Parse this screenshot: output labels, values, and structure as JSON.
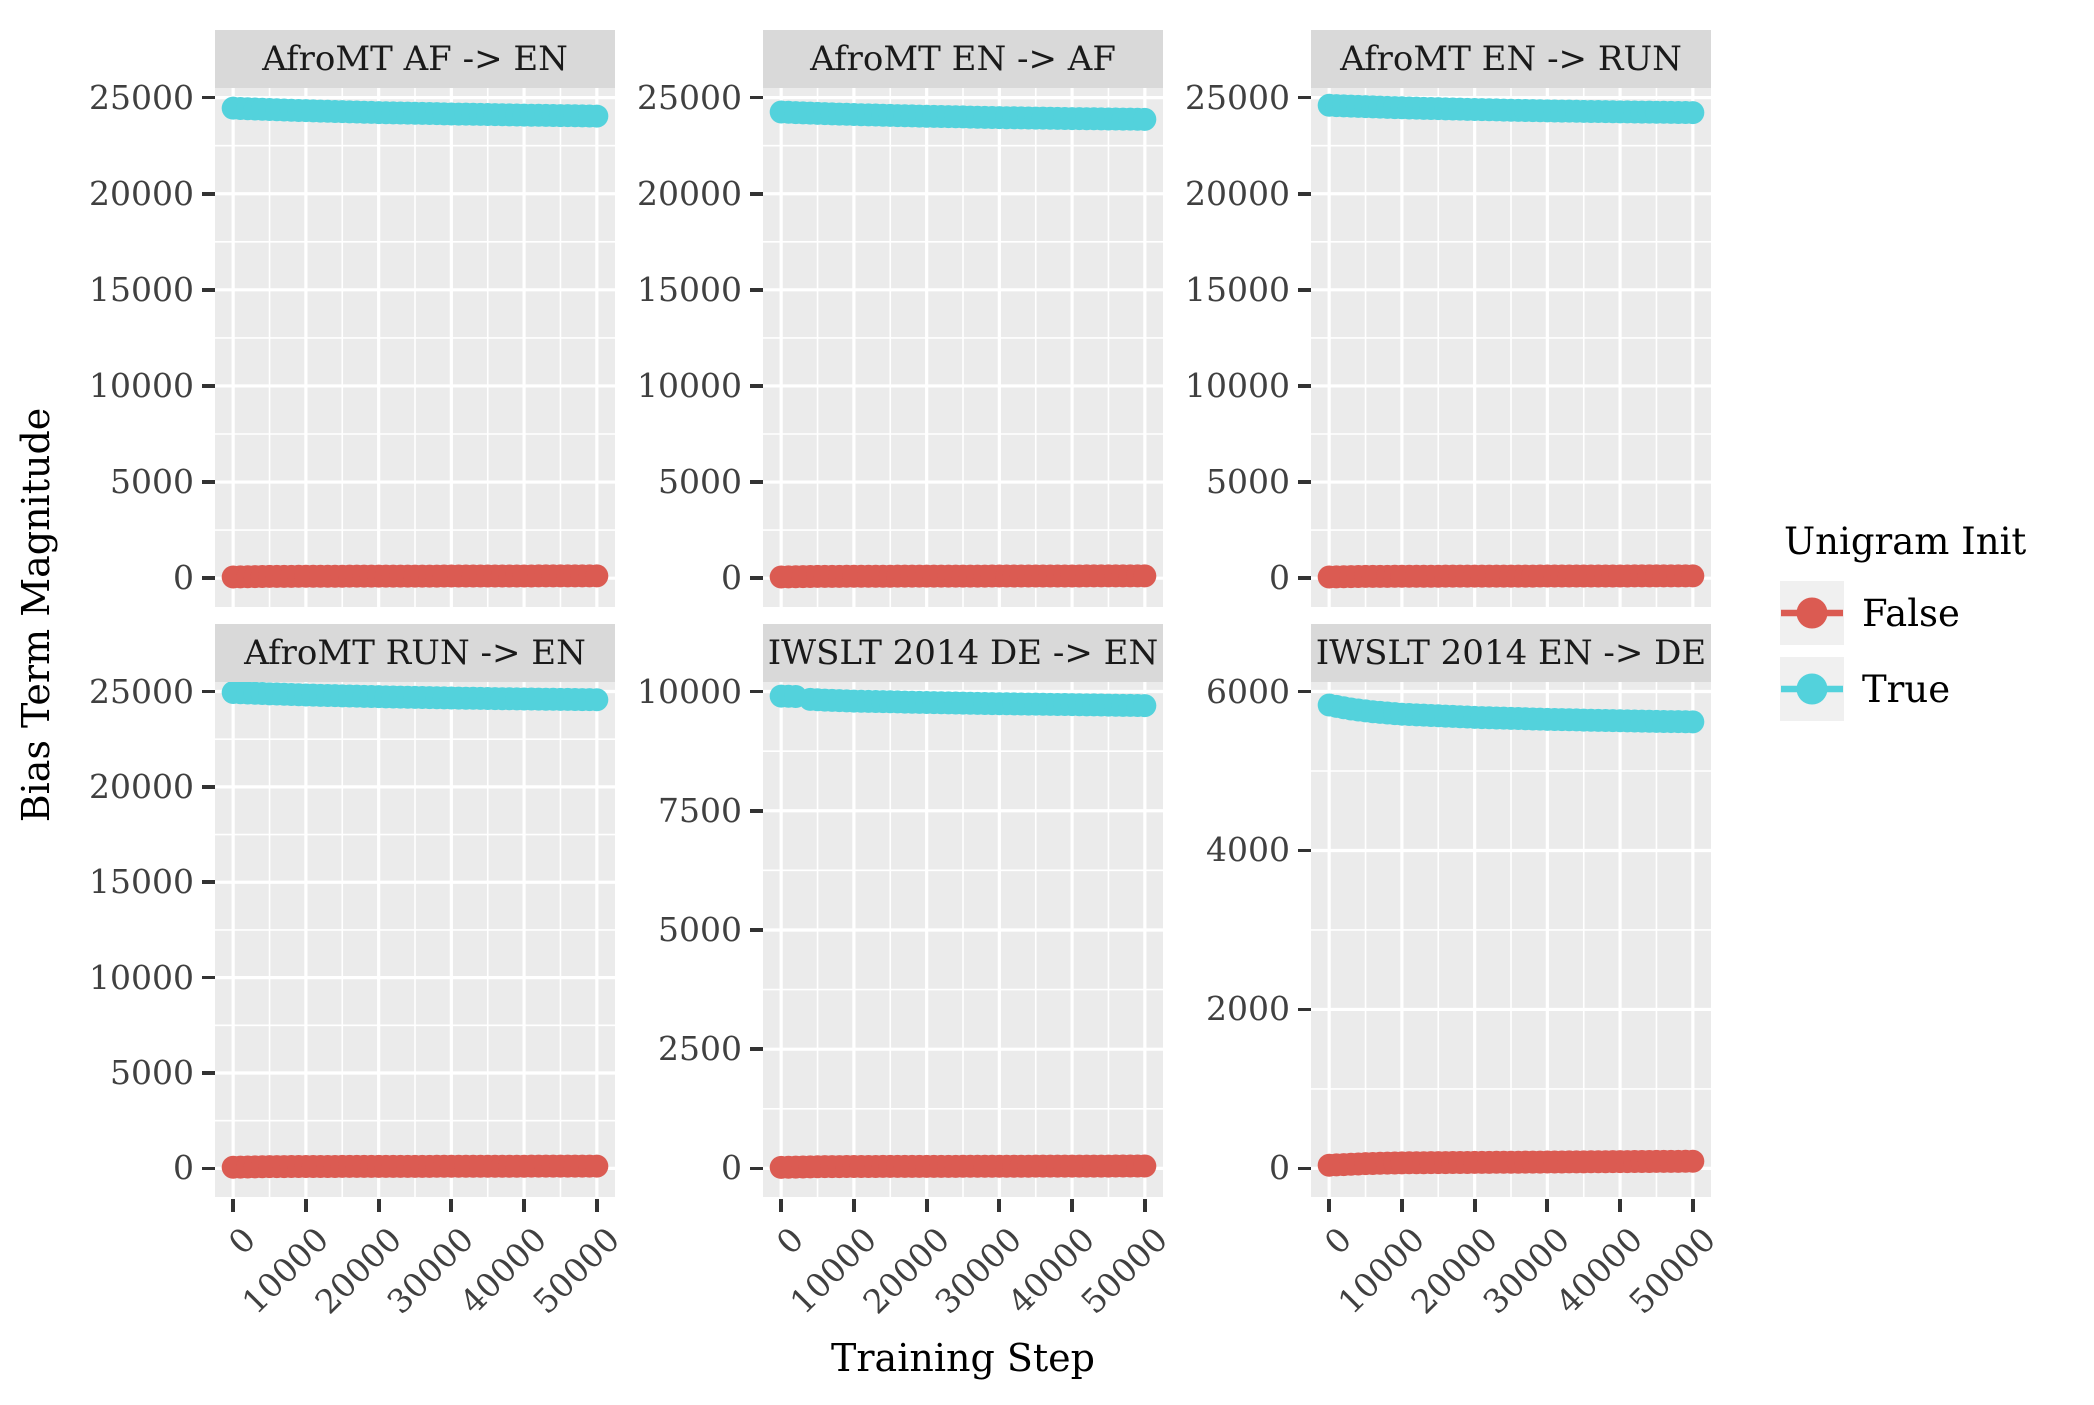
{
  "figure": {
    "ylabel": "Bias Term Magnitude",
    "xlabel": "Training Step",
    "background": "#FFFFFF",
    "panel_bg": "#EBEBEB",
    "strip_bg": "#D9D9D9",
    "grid_color": "#FFFFFF",
    "tick_mark_color": "#333333",
    "tick_text_color": "#404040",
    "strip_text_color": "#1A1A1A"
  },
  "legend": {
    "title": "Unigram Init",
    "key_bg": "#F0F0F0",
    "entries": [
      {
        "label": "False",
        "color": "#DB5B52"
      },
      {
        "label": "True",
        "color": "#53D2DC"
      }
    ]
  },
  "chart_data": [
    {
      "type": "scatter",
      "title": "AfroMT AF -> EN",
      "xlabel": "Training Step",
      "ylabel": "Bias Term Magnitude",
      "x_ticks": [
        0,
        10000,
        20000,
        30000,
        40000,
        50000
      ],
      "y_ticks": [
        0,
        5000,
        10000,
        15000,
        20000,
        25000
      ],
      "xlim": [
        -2500,
        52500
      ],
      "ylim": [
        -1500,
        25500
      ],
      "grid": true,
      "series": [
        {
          "name": "False",
          "points": [
            [
              0,
              60
            ],
            [
              5000,
              90
            ],
            [
              10000,
              100
            ],
            [
              30000,
              110
            ],
            [
              50000,
              120
            ]
          ]
        },
        {
          "name": "True",
          "points": [
            [
              0,
              24450
            ],
            [
              5000,
              24380
            ],
            [
              10000,
              24320
            ],
            [
              20000,
              24220
            ],
            [
              30000,
              24150
            ],
            [
              40000,
              24090
            ],
            [
              50000,
              24040
            ]
          ]
        }
      ]
    },
    {
      "type": "scatter",
      "title": "AfroMT EN -> AF",
      "xlabel": "Training Step",
      "ylabel": "Bias Term Magnitude",
      "x_ticks": [
        0,
        10000,
        20000,
        30000,
        40000,
        50000
      ],
      "y_ticks": [
        0,
        5000,
        10000,
        15000,
        20000,
        25000
      ],
      "xlim": [
        -2500,
        52500
      ],
      "ylim": [
        -1500,
        25500
      ],
      "grid": true,
      "series": [
        {
          "name": "False",
          "points": [
            [
              0,
              60
            ],
            [
              5000,
              90
            ],
            [
              10000,
              100
            ],
            [
              30000,
              110
            ],
            [
              50000,
              120
            ]
          ]
        },
        {
          "name": "True",
          "points": [
            [
              0,
              24250
            ],
            [
              5000,
              24180
            ],
            [
              10000,
              24120
            ],
            [
              20000,
              24030
            ],
            [
              30000,
              23960
            ],
            [
              40000,
              23910
            ],
            [
              50000,
              23870
            ]
          ]
        }
      ]
    },
    {
      "type": "scatter",
      "title": "AfroMT EN -> RUN",
      "xlabel": "Training Step",
      "ylabel": "Bias Term Magnitude",
      "x_ticks": [
        0,
        10000,
        20000,
        30000,
        40000,
        50000
      ],
      "y_ticks": [
        0,
        5000,
        10000,
        15000,
        20000,
        25000
      ],
      "xlim": [
        -2500,
        52500
      ],
      "ylim": [
        -1500,
        25500
      ],
      "grid": true,
      "series": [
        {
          "name": "False",
          "points": [
            [
              0,
              60
            ],
            [
              5000,
              90
            ],
            [
              10000,
              100
            ],
            [
              30000,
              110
            ],
            [
              50000,
              120
            ]
          ]
        },
        {
          "name": "True",
          "points": [
            [
              0,
              24600
            ],
            [
              5000,
              24530
            ],
            [
              10000,
              24470
            ],
            [
              20000,
              24380
            ],
            [
              30000,
              24310
            ],
            [
              40000,
              24260
            ],
            [
              50000,
              24220
            ]
          ]
        }
      ]
    },
    {
      "type": "scatter",
      "title": "AfroMT RUN -> EN",
      "xlabel": "Training Step",
      "ylabel": "Bias Term Magnitude",
      "x_ticks": [
        0,
        10000,
        20000,
        30000,
        40000,
        50000
      ],
      "y_ticks": [
        0,
        5000,
        10000,
        15000,
        20000,
        25000
      ],
      "xlim": [
        -2500,
        52500
      ],
      "ylim": [
        -1500,
        25500
      ],
      "grid": true,
      "series": [
        {
          "name": "False",
          "points": [
            [
              0,
              60
            ],
            [
              5000,
              90
            ],
            [
              10000,
              100
            ],
            [
              30000,
              110
            ],
            [
              50000,
              120
            ]
          ]
        },
        {
          "name": "True",
          "points": [
            [
              0,
              24950
            ],
            [
              5000,
              24880
            ],
            [
              10000,
              24820
            ],
            [
              20000,
              24730
            ],
            [
              30000,
              24660
            ],
            [
              40000,
              24610
            ],
            [
              50000,
              24570
            ]
          ]
        }
      ]
    },
    {
      "type": "scatter",
      "title": "IWSLT 2014 DE -> EN",
      "xlabel": "Training Step",
      "ylabel": "Bias Term Magnitude",
      "x_ticks": [
        0,
        10000,
        20000,
        30000,
        40000,
        50000
      ],
      "y_ticks": [
        0,
        2500,
        5000,
        7500,
        10000
      ],
      "xlim": [
        -2500,
        52500
      ],
      "ylim": [
        -600,
        10200
      ],
      "grid": true,
      "series": [
        {
          "name": "False",
          "points": [
            [
              0,
              20
            ],
            [
              5000,
              35
            ],
            [
              10000,
              40
            ],
            [
              30000,
              45
            ],
            [
              50000,
              50
            ]
          ]
        },
        {
          "name": "True",
          "points": [
            [
              0,
              9905
            ],
            [
              2500,
              9895
            ],
            [
              4000,
              9835
            ],
            [
              6000,
              9820
            ],
            [
              10000,
              9800
            ],
            [
              20000,
              9770
            ],
            [
              30000,
              9745
            ],
            [
              40000,
              9725
            ],
            [
              50000,
              9705
            ]
          ],
          "gaps": [
            [
              2600,
              3600
            ]
          ]
        }
      ]
    },
    {
      "type": "scatter",
      "title": "IWSLT 2014 EN -> DE",
      "xlabel": "Training Step",
      "ylabel": "Bias Term Magnitude",
      "x_ticks": [
        0,
        10000,
        20000,
        30000,
        40000,
        50000
      ],
      "y_ticks": [
        0,
        2000,
        4000,
        6000
      ],
      "xlim": [
        -2500,
        52500
      ],
      "ylim": [
        -360,
        6120
      ],
      "grid": true,
      "series": [
        {
          "name": "False",
          "points": [
            [
              0,
              40
            ],
            [
              5000,
              60
            ],
            [
              10000,
              70
            ],
            [
              30000,
              80
            ],
            [
              50000,
              90
            ]
          ]
        },
        {
          "name": "True",
          "points": [
            [
              0,
              5830
            ],
            [
              3000,
              5780
            ],
            [
              6000,
              5745
            ],
            [
              10000,
              5715
            ],
            [
              20000,
              5675
            ],
            [
              30000,
              5650
            ],
            [
              40000,
              5632
            ],
            [
              50000,
              5618
            ]
          ]
        }
      ]
    }
  ]
}
